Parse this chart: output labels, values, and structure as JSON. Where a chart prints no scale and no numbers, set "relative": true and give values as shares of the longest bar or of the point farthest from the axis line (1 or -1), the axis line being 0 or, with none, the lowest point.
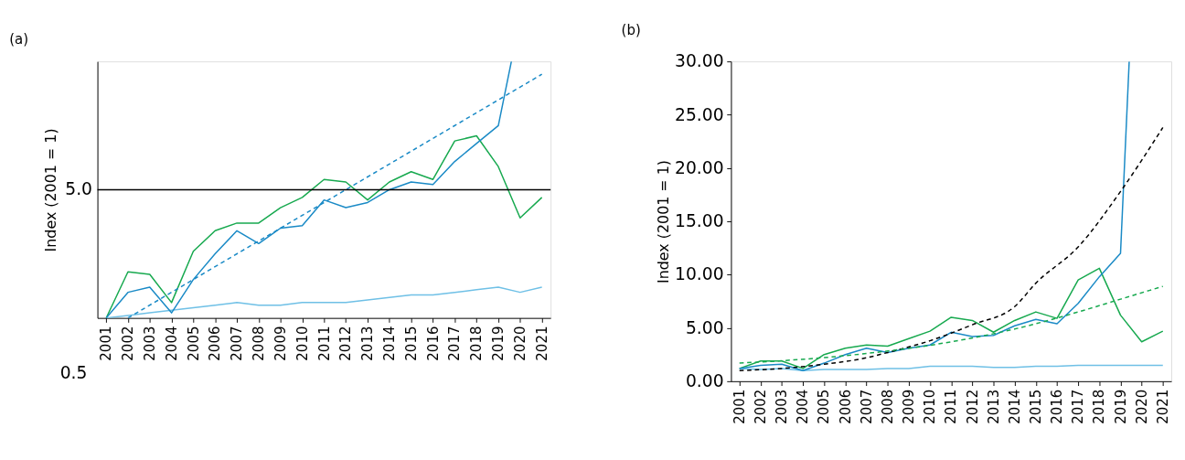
{
  "chart_data": [
    {
      "type": "line",
      "title": "(a)",
      "ylabel": "Index (2001 = 1)",
      "relative": true,
      "x": [
        2001,
        2002,
        2003,
        2004,
        2005,
        2006,
        2007,
        2008,
        2009,
        2010,
        2011,
        2012,
        2013,
        2014,
        2015,
        2016,
        2017,
        2018,
        2019,
        2020,
        2021
      ],
      "xlim": [
        2000.6,
        2021.4
      ],
      "xticks": [
        2001,
        2002,
        2003,
        2004,
        2005,
        2006,
        2007,
        2008,
        2009,
        2010,
        2011,
        2012,
        2013,
        2014,
        2015,
        2016,
        2017,
        2018,
        2019,
        2020,
        2021
      ],
      "grid": false,
      "ref_lines": [
        {
          "axis": "y",
          "value": 0.5,
          "color": "#000000"
        }
      ],
      "annotations": [
        "5.0",
        "0.5"
      ],
      "series": [
        {
          "color": "#6fc0e6",
          "values": [
            0,
            0.01,
            0.02,
            0.03,
            0.04,
            0.05,
            0.06,
            0.05,
            0.05,
            0.06,
            0.06,
            0.06,
            0.07,
            0.08,
            0.09,
            0.09,
            0.1,
            0.11,
            0.12,
            0.1,
            0.12
          ]
        },
        {
          "color": "#17a94f",
          "values": [
            0,
            0.18,
            0.17,
            0.06,
            0.26,
            0.34,
            0.37,
            0.37,
            0.43,
            0.47,
            0.54,
            0.53,
            0.46,
            0.53,
            0.57,
            0.54,
            0.69,
            0.71,
            0.59,
            0.39,
            0.47
          ]
        },
        {
          "color": "#1a8ac6",
          "x": [
            2001,
            2002,
            2003,
            2004,
            2005,
            2006,
            2007,
            2008,
            2009,
            2010,
            2011,
            2012,
            2013,
            2014,
            2015,
            2016,
            2017,
            2018,
            2019,
            2019.6
          ],
          "values": [
            0,
            0.1,
            0.12,
            0.02,
            0.15,
            0.25,
            0.34,
            0.29,
            0.35,
            0.36,
            0.46,
            0.43,
            0.45,
            0.5,
            0.53,
            0.52,
            0.61,
            0.68,
            0.75,
            1
          ]
        },
        {
          "color": "#1a8ac6",
          "line_style": "dashed",
          "x": [
            2002,
            2021
          ],
          "values": [
            0,
            0.95
          ]
        }
      ]
    },
    {
      "type": "line",
      "title": "(b)",
      "ylabel": "Index (2001 = 1)",
      "x": [
        2001,
        2002,
        2003,
        2004,
        2005,
        2006,
        2007,
        2008,
        2009,
        2010,
        2011,
        2012,
        2013,
        2014,
        2015,
        2016,
        2017,
        2018,
        2019,
        2020,
        2021
      ],
      "xlim": [
        2000.6,
        2021.4
      ],
      "xticks": [
        2001,
        2002,
        2003,
        2004,
        2005,
        2006,
        2007,
        2008,
        2009,
        2010,
        2011,
        2012,
        2013,
        2014,
        2015,
        2016,
        2017,
        2018,
        2019,
        2020,
        2021
      ],
      "ylim": [
        0,
        30
      ],
      "yticks": [
        {
          "value": 0,
          "label": "0.00"
        },
        {
          "value": 5,
          "label": "5.00"
        },
        {
          "value": 10,
          "label": "10.00"
        },
        {
          "value": 15,
          "label": "15.00"
        },
        {
          "value": 20,
          "label": "20.00"
        },
        {
          "value": 25,
          "label": "25.00"
        },
        {
          "value": 30,
          "label": "30.00"
        }
      ],
      "grid": false,
      "series": [
        {
          "color": "#6fc0e6",
          "values": [
            1.2,
            1.1,
            1.2,
            1.0,
            1.1,
            1.1,
            1.1,
            1.2,
            1.2,
            1.4,
            1.4,
            1.4,
            1.3,
            1.3,
            1.4,
            1.4,
            1.5,
            1.5,
            1.5,
            1.5,
            1.5
          ]
        },
        {
          "color": "#17a94f",
          "values": [
            1.2,
            1.9,
            1.9,
            1.2,
            2.5,
            3.1,
            3.4,
            3.3,
            4.0,
            4.7,
            6.0,
            5.7,
            4.6,
            5.7,
            6.5,
            5.9,
            9.5,
            10.6,
            6.2,
            3.7,
            4.7
          ]
        },
        {
          "color": "#1a8ac6",
          "x": [
            2001,
            2002,
            2003,
            2004,
            2005,
            2006,
            2007,
            2008,
            2009,
            2010,
            2011,
            2012,
            2013,
            2014,
            2015,
            2016,
            2017,
            2018,
            2019,
            2019.41
          ],
          "values": [
            1.2,
            1.5,
            1.6,
            1.0,
            1.7,
            2.5,
            3.1,
            2.7,
            3.1,
            3.4,
            4.6,
            4.2,
            4.3,
            5.2,
            5.8,
            5.4,
            7.3,
            9.8,
            12.0,
            30
          ]
        },
        {
          "color": "#000000",
          "line_style": "dashed",
          "x": [
            2001,
            2003,
            2005,
            2007,
            2008,
            2010,
            2012,
            2014,
            2015,
            2017,
            2019,
            2021
          ],
          "values": [
            1.0,
            1.2,
            1.6,
            2.2,
            2.7,
            3.8,
            5.3,
            7.0,
            9.2,
            12.6,
            17.8,
            23.8
          ]
        },
        {
          "color": "#17a94f",
          "line_style": "dashed",
          "x": [
            2001,
            2006,
            2011,
            2014,
            2017,
            2019,
            2021
          ],
          "values": [
            1.7,
            2.4,
            3.7,
            4.9,
            6.5,
            7.7,
            8.9
          ]
        }
      ]
    }
  ]
}
